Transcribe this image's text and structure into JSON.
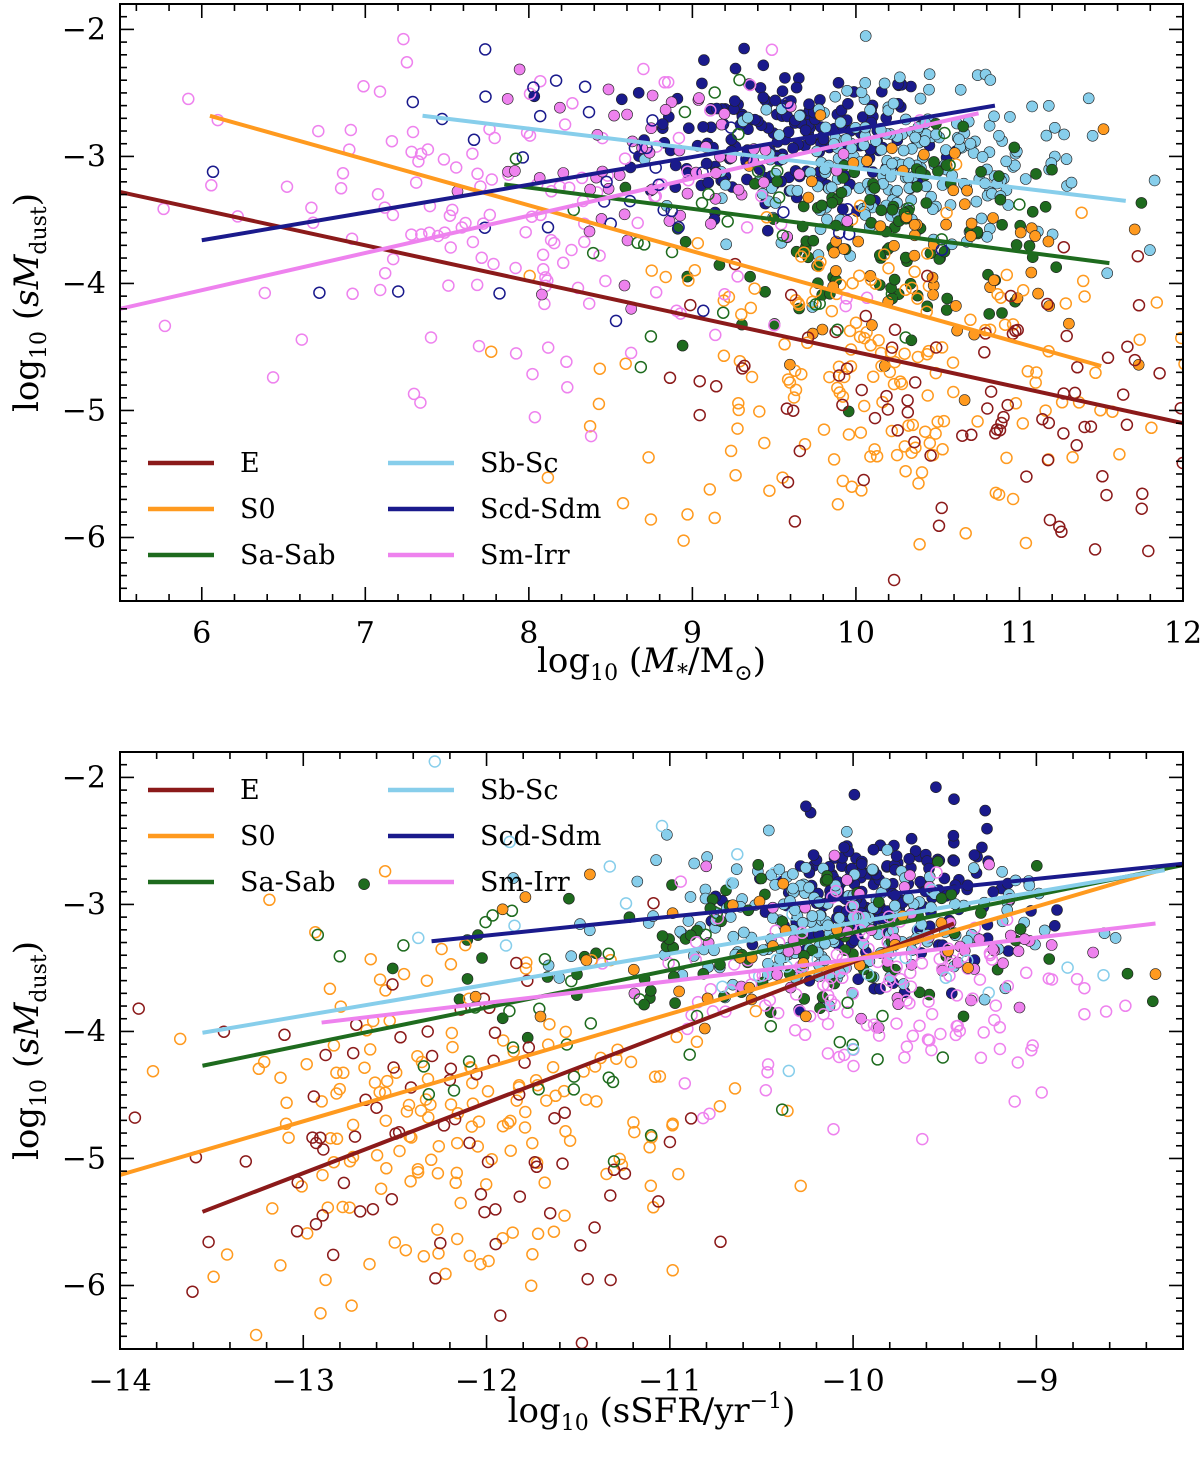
{
  "colors": {
    "E": "#8b1a1a",
    "S0": "#ff9a1f",
    "Sa-Sab": "#1e6b1e",
    "Sb-Sc": "#87ceeb",
    "Scd-Sdm": "#1a1a8c",
    "Sm-Irr": "#ee82ee"
  },
  "chart_data": [
    {
      "type": "scatter",
      "xlabel_parts": [
        "log",
        "10",
        " (",
        "M",
        "*",
        "/M",
        "⊙",
        ")"
      ],
      "ylabel_parts": [
        "log",
        "10",
        " (",
        "sM",
        "dust",
        ")"
      ],
      "xlim": [
        5.5,
        12
      ],
      "ylim": [
        -6.5,
        -1.8
      ],
      "xticks": [
        6,
        7,
        8,
        9,
        10,
        11,
        12
      ],
      "xtick_labels": [
        "6",
        "7",
        "8",
        "9",
        "10",
        "11",
        "12"
      ],
      "yticks": [
        -6,
        -5,
        -4,
        -3,
        -2
      ],
      "ytick_labels": [
        "−6",
        "−5",
        "−4",
        "−3",
        "−2"
      ],
      "legend": {
        "placement": "lower-left",
        "entries": [
          "E",
          "S0",
          "Sa-Sab",
          "Sb-Sc",
          "Scd-Sdm",
          "Sm-Irr"
        ]
      },
      "fits": [
        {
          "name": "E",
          "x": [
            5.5,
            12.0
          ],
          "y": [
            -3.28,
            -5.1
          ]
        },
        {
          "name": "S0",
          "x": [
            6.05,
            11.5
          ],
          "y": [
            -2.68,
            -4.65
          ]
        },
        {
          "name": "Sa-Sab",
          "x": [
            7.85,
            11.55
          ],
          "y": [
            -3.22,
            -3.84
          ]
        },
        {
          "name": "Sb-Sc",
          "x": [
            7.35,
            11.65
          ],
          "y": [
            -2.68,
            -3.35
          ]
        },
        {
          "name": "Scd-Sdm",
          "x": [
            6.0,
            10.85
          ],
          "y": [
            -3.66,
            -2.6
          ]
        },
        {
          "name": "Sm-Irr",
          "x": [
            5.5,
            10.75
          ],
          "y": [
            -4.2,
            -2.66
          ]
        }
      ],
      "point_clusters": [
        {
          "name": "Scd-Sdm",
          "filled": true,
          "n": 190,
          "cx": 9.6,
          "cy": -2.85,
          "sx": 0.45,
          "sy": 0.28
        },
        {
          "name": "Sb-Sc",
          "filled": true,
          "n": 230,
          "cx": 10.3,
          "cy": -3.1,
          "sx": 0.55,
          "sy": 0.32
        },
        {
          "name": "Sa-Sab",
          "filled": true,
          "n": 110,
          "cx": 10.3,
          "cy": -3.6,
          "sx": 0.6,
          "sy": 0.35
        },
        {
          "name": "S0",
          "filled": true,
          "n": 60,
          "cx": 10.3,
          "cy": -3.8,
          "sx": 0.6,
          "sy": 0.5
        },
        {
          "name": "S0",
          "filled": false,
          "n": 180,
          "cx": 10.1,
          "cy": -4.7,
          "sx": 0.8,
          "sy": 0.7
        },
        {
          "name": "E",
          "filled": false,
          "n": 90,
          "cx": 10.6,
          "cy": -5.0,
          "sx": 0.8,
          "sy": 0.6
        },
        {
          "name": "Sm-Irr",
          "filled": false,
          "n": 140,
          "cx": 7.9,
          "cy": -3.5,
          "sx": 0.95,
          "sy": 0.65
        },
        {
          "name": "Sm-Irr",
          "filled": true,
          "n": 60,
          "cx": 8.9,
          "cy": -3.1,
          "sx": 0.6,
          "sy": 0.35
        },
        {
          "name": "Scd-Sdm",
          "filled": false,
          "n": 40,
          "cx": 8.7,
          "cy": -3.2,
          "sx": 0.7,
          "sy": 0.5
        },
        {
          "name": "Sa-Sab",
          "filled": false,
          "n": 30,
          "cx": 9.5,
          "cy": -3.6,
          "sx": 0.9,
          "sy": 0.5
        }
      ]
    },
    {
      "type": "scatter",
      "xlabel_parts": [
        "log",
        "10",
        " (sSFR/yr",
        "−1",
        ")"
      ],
      "ylabel_parts": [
        "log",
        "10",
        " (",
        "sM",
        "dust",
        ")"
      ],
      "xlim": [
        -14,
        -8.2
      ],
      "ylim": [
        -6.5,
        -1.8
      ],
      "xticks": [
        -14,
        -13,
        -12,
        -11,
        -10,
        -9
      ],
      "xtick_labels": [
        "−14",
        "−13",
        "−12",
        "−11",
        "−10",
        "−9"
      ],
      "yticks": [
        -6,
        -5,
        -4,
        -3,
        -2
      ],
      "ytick_labels": [
        "−6",
        "−5",
        "−4",
        "−3",
        "−2"
      ],
      "legend": {
        "placement": "upper-left",
        "entries": [
          "E",
          "S0",
          "Sa-Sab",
          "Sb-Sc",
          "Scd-Sdm",
          "Sm-Irr"
        ]
      },
      "fits": [
        {
          "name": "E",
          "x": [
            -13.55,
            -9.45
          ],
          "y": [
            -5.42,
            -3.15
          ]
        },
        {
          "name": "S0",
          "x": [
            -14.0,
            -8.25
          ],
          "y": [
            -5.13,
            -2.7
          ]
        },
        {
          "name": "Sa-Sab",
          "x": [
            -13.55,
            -8.2
          ],
          "y": [
            -4.27,
            -2.69
          ]
        },
        {
          "name": "Sb-Sc",
          "x": [
            -13.55,
            -8.3
          ],
          "y": [
            -4.01,
            -2.73
          ]
        },
        {
          "name": "Scd-Sdm",
          "x": [
            -12.3,
            -8.2
          ],
          "y": [
            -3.29,
            -2.68
          ]
        },
        {
          "name": "Sm-Irr",
          "x": [
            -12.9,
            -8.35
          ],
          "y": [
            -3.93,
            -3.15
          ]
        }
      ],
      "point_clusters": [
        {
          "name": "Scd-Sdm",
          "filled": true,
          "n": 190,
          "cx": -9.85,
          "cy": -2.95,
          "sx": 0.35,
          "sy": 0.3
        },
        {
          "name": "Sb-Sc",
          "filled": true,
          "n": 200,
          "cx": -10.2,
          "cy": -3.15,
          "sx": 0.55,
          "sy": 0.28
        },
        {
          "name": "Sa-Sab",
          "filled": true,
          "n": 90,
          "cx": -10.6,
          "cy": -3.4,
          "sx": 0.8,
          "sy": 0.35
        },
        {
          "name": "Sm-Irr",
          "filled": true,
          "n": 50,
          "cx": -9.7,
          "cy": -3.25,
          "sx": 0.45,
          "sy": 0.3
        },
        {
          "name": "Sm-Irr",
          "filled": false,
          "n": 140,
          "cx": -9.8,
          "cy": -3.7,
          "sx": 0.6,
          "sy": 0.45
        },
        {
          "name": "S0",
          "filled": false,
          "n": 180,
          "cx": -12.2,
          "cy": -4.6,
          "sx": 0.7,
          "sy": 0.75
        },
        {
          "name": "E",
          "filled": false,
          "n": 80,
          "cx": -12.2,
          "cy": -4.9,
          "sx": 0.7,
          "sy": 0.7
        },
        {
          "name": "Sa-Sab",
          "filled": false,
          "n": 40,
          "cx": -11.5,
          "cy": -3.9,
          "sx": 0.8,
          "sy": 0.5
        },
        {
          "name": "Sb-Sc",
          "filled": false,
          "n": 30,
          "cx": -10.5,
          "cy": -3.3,
          "sx": 0.9,
          "sy": 0.4
        },
        {
          "name": "S0",
          "filled": true,
          "n": 30,
          "cx": -10.6,
          "cy": -3.4,
          "sx": 0.8,
          "sy": 0.35
        }
      ]
    }
  ]
}
